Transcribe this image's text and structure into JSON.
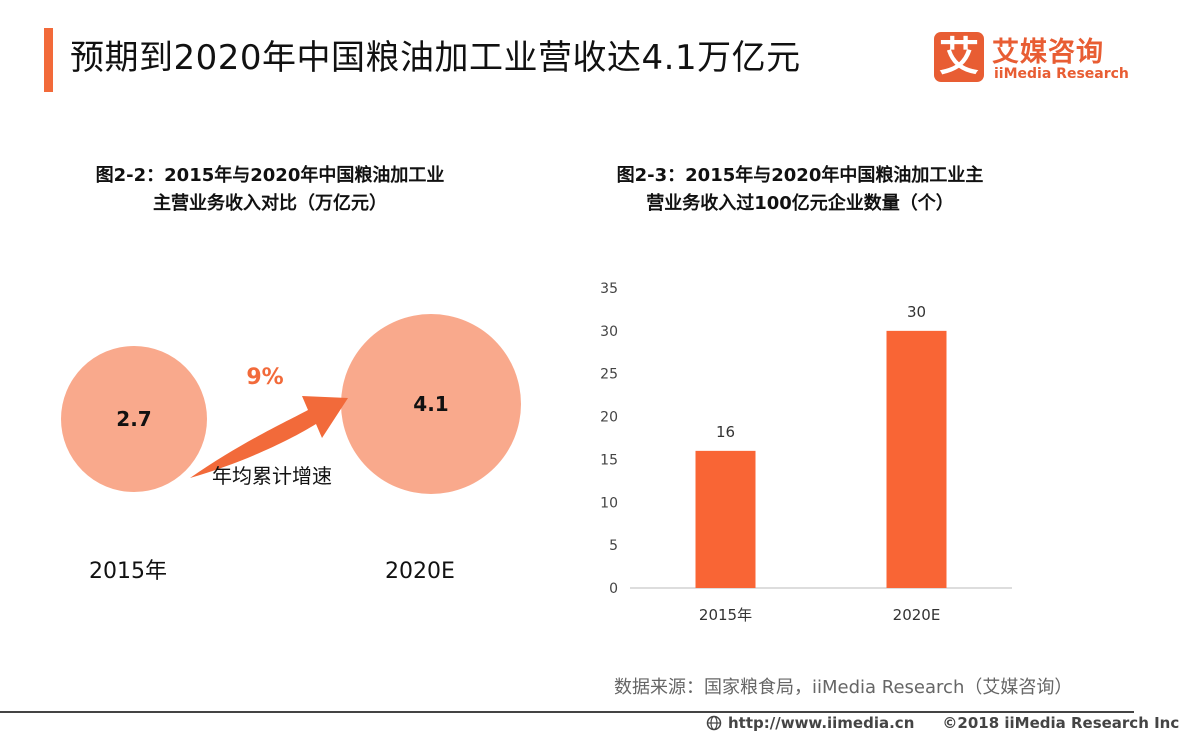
{
  "header": {
    "title": "预期到2020年中国粮油加工业营收达4.1万亿元",
    "logo_icon_text": "艾",
    "logo_cn": "艾媒咨询",
    "logo_en": "iiMedia Research",
    "accent_color": "#f26a3a"
  },
  "chart_left": {
    "title_line1": "图2-2：2015年与2020年中国粮油加工业",
    "title_line2": "主营业务收入对比（万亿元）"
  },
  "chart_right": {
    "title_line1": "图2-3：2015年与2020年中国粮油加工业主",
    "title_line2": "营业务收入过100亿元企业数量（个）"
  },
  "chart_data": [
    {
      "type": "bubble",
      "title": "图2-2：2015年与2020年中国粮油加工业主营业务收入对比（万亿元）",
      "categories": [
        "2015年",
        "2020E"
      ],
      "values": [
        2.7,
        4.1
      ],
      "value_labels": [
        "2.7",
        "4.1"
      ],
      "annotation": {
        "value": "9%",
        "label": "年均累计增速"
      },
      "colors": {
        "bubble": "#f9a98c",
        "arrow": "#f26a3a"
      }
    },
    {
      "type": "bar",
      "title": "图2-3：2015年与2020年中国粮油加工业主营业务收入过100亿元企业数量（个）",
      "categories": [
        "2015年",
        "2020E"
      ],
      "values": [
        16,
        30
      ],
      "ylim": [
        0,
        35
      ],
      "yticks": [
        0,
        5,
        10,
        15,
        20,
        25,
        30,
        35
      ],
      "grid": false,
      "colors": {
        "bar": "#f96535"
      }
    }
  ],
  "source": "数据来源：国家粮食局，iiMedia Research（艾媒咨询）",
  "footer": {
    "url": "http://www.iimedia.cn",
    "copyright": "©2018  iiMedia Research  Inc"
  }
}
